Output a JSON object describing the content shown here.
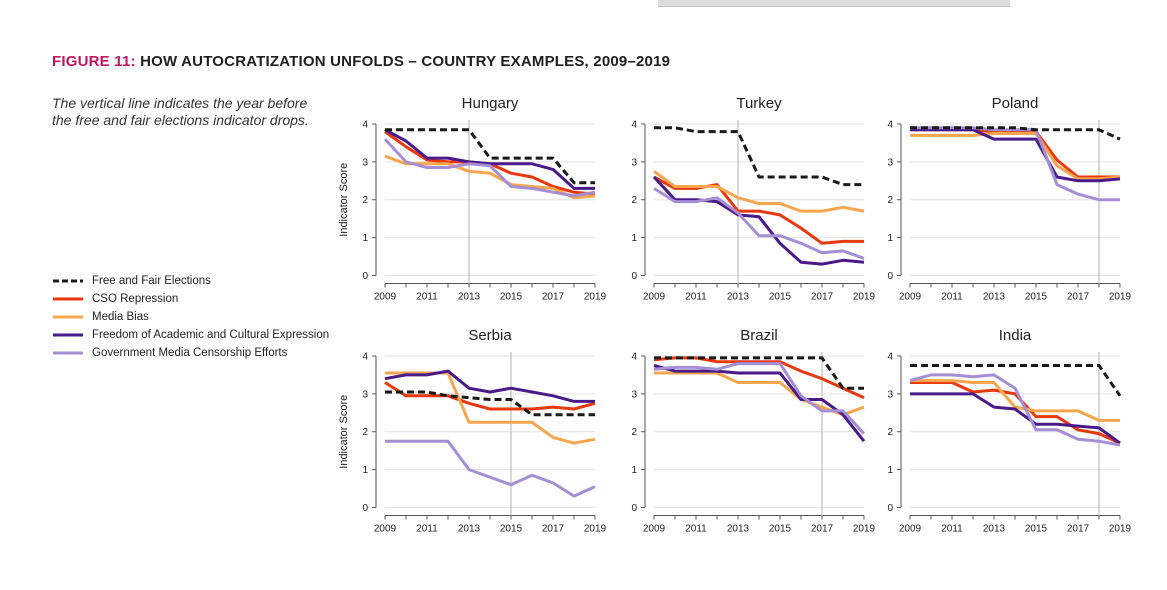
{
  "figure": {
    "number_label": "FIGURE 11:",
    "title": "HOW AUTOCRATIZATION UNFOLDS – COUNTRY EXAMPLES, 2009–2019",
    "note": "The vertical line indicates the year before the free and fair elections indicator drops."
  },
  "legend": [
    {
      "name": "Free and Fair Elections",
      "color": "#1a1a1a",
      "dash": true
    },
    {
      "name": "CSO Repression",
      "color": "#e8380d",
      "dash": false
    },
    {
      "name": "Media Bias",
      "color": "#f7a64e",
      "dash": false
    },
    {
      "name": "Freedom of Academic and Cultural Expression",
      "color": "#4b1a8a",
      "dash": false
    },
    {
      "name": "Government Media Censorship Efforts",
      "color": "#a58fd4",
      "dash": false
    }
  ],
  "chart_data": [
    {
      "type": "line",
      "title": "Hungary",
      "ylabel": "Indicator Score",
      "xlim": [
        2009,
        2019
      ],
      "ylim": [
        0,
        4
      ],
      "xticks": [
        "2009",
        "2011",
        "2013",
        "2015",
        "2017",
        "2019"
      ],
      "yticks": [
        "0",
        "1",
        "2",
        "3",
        "4"
      ],
      "vline": 2013,
      "x": [
        2009,
        2010,
        2011,
        2012,
        2013,
        2014,
        2015,
        2016,
        2017,
        2018,
        2019
      ],
      "series": [
        {
          "name": "Free and Fair Elections",
          "values": [
            3.85,
            3.85,
            3.85,
            3.85,
            3.85,
            3.1,
            3.1,
            3.1,
            3.1,
            2.45,
            2.45
          ]
        },
        {
          "name": "CSO Repression",
          "values": [
            3.8,
            3.4,
            3.05,
            3.0,
            3.0,
            2.95,
            2.7,
            2.6,
            2.35,
            2.2,
            2.15
          ]
        },
        {
          "name": "Media Bias",
          "values": [
            3.15,
            2.95,
            2.95,
            2.95,
            2.75,
            2.7,
            2.4,
            2.35,
            2.3,
            2.05,
            2.1
          ]
        },
        {
          "name": "Freedom of Academic and Cultural Expression",
          "values": [
            3.85,
            3.55,
            3.1,
            3.1,
            3.0,
            2.95,
            2.95,
            2.95,
            2.8,
            2.3,
            2.3
          ]
        },
        {
          "name": "Government Media Censorship Efforts",
          "values": [
            3.6,
            3.0,
            2.85,
            2.85,
            2.95,
            2.9,
            2.35,
            2.3,
            2.2,
            2.1,
            2.2
          ]
        }
      ]
    },
    {
      "type": "line",
      "title": "Turkey",
      "ylabel": "",
      "xlim": [
        2009,
        2019
      ],
      "ylim": [
        0,
        4
      ],
      "xticks": [
        "2009",
        "2011",
        "2013",
        "2015",
        "2017",
        "2019"
      ],
      "yticks": [
        "0",
        "1",
        "2",
        "3",
        "4"
      ],
      "vline": 2013,
      "x": [
        2009,
        2010,
        2011,
        2012,
        2013,
        2014,
        2015,
        2016,
        2017,
        2018,
        2019
      ],
      "series": [
        {
          "name": "Free and Fair Elections",
          "values": [
            3.9,
            3.9,
            3.8,
            3.8,
            3.8,
            2.6,
            2.6,
            2.6,
            2.6,
            2.4,
            2.4
          ]
        },
        {
          "name": "CSO Repression",
          "values": [
            2.6,
            2.3,
            2.3,
            2.4,
            1.7,
            1.7,
            1.6,
            1.25,
            0.85,
            0.9,
            0.9
          ]
        },
        {
          "name": "Media Bias",
          "values": [
            2.75,
            2.35,
            2.35,
            2.35,
            2.05,
            1.9,
            1.9,
            1.7,
            1.7,
            1.8,
            1.7
          ]
        },
        {
          "name": "Freedom of Academic and Cultural Expression",
          "values": [
            2.6,
            2.0,
            2.0,
            1.95,
            1.6,
            1.55,
            0.85,
            0.35,
            0.3,
            0.4,
            0.35
          ]
        },
        {
          "name": "Government Media Censorship Efforts",
          "values": [
            2.3,
            1.95,
            1.95,
            2.05,
            1.65,
            1.05,
            1.05,
            0.85,
            0.6,
            0.65,
            0.45
          ]
        }
      ]
    },
    {
      "type": "line",
      "title": "Poland",
      "ylabel": "",
      "xlim": [
        2009,
        2019
      ],
      "ylim": [
        0,
        4
      ],
      "xticks": [
        "2009",
        "2011",
        "2013",
        "2015",
        "2017",
        "2019"
      ],
      "yticks": [
        "0",
        "1",
        "2",
        "3",
        "4"
      ],
      "vline": 2018,
      "x": [
        2009,
        2010,
        2011,
        2012,
        2013,
        2014,
        2015,
        2016,
        2017,
        2018,
        2019
      ],
      "series": [
        {
          "name": "Free and Fair Elections",
          "values": [
            3.9,
            3.9,
            3.9,
            3.9,
            3.9,
            3.9,
            3.85,
            3.85,
            3.85,
            3.85,
            3.6
          ]
        },
        {
          "name": "CSO Repression",
          "values": [
            3.85,
            3.85,
            3.85,
            3.85,
            3.8,
            3.8,
            3.8,
            3.05,
            2.6,
            2.6,
            2.6
          ]
        },
        {
          "name": "Media Bias",
          "values": [
            3.7,
            3.7,
            3.7,
            3.7,
            3.75,
            3.75,
            3.75,
            2.9,
            2.55,
            2.55,
            2.6
          ]
        },
        {
          "name": "Freedom of Academic and Cultural Expression",
          "values": [
            3.85,
            3.85,
            3.85,
            3.85,
            3.6,
            3.6,
            3.6,
            2.6,
            2.5,
            2.5,
            2.55
          ]
        },
        {
          "name": "Government Media Censorship Efforts",
          "values": [
            3.9,
            3.9,
            3.9,
            3.9,
            3.85,
            3.85,
            3.85,
            2.4,
            2.15,
            2.0,
            2.0
          ]
        }
      ]
    },
    {
      "type": "line",
      "title": "Serbia",
      "ylabel": "Indicator Score",
      "xlim": [
        2009,
        2019
      ],
      "ylim": [
        0,
        4
      ],
      "xticks": [
        "2009",
        "2011",
        "2013",
        "2015",
        "2017",
        "2019"
      ],
      "yticks": [
        "0",
        "1",
        "2",
        "3",
        "4"
      ],
      "vline": 2015,
      "x": [
        2009,
        2010,
        2011,
        2012,
        2013,
        2014,
        2015,
        2016,
        2017,
        2018,
        2019
      ],
      "series": [
        {
          "name": "Free and Fair Elections",
          "values": [
            3.05,
            3.05,
            3.05,
            2.95,
            2.9,
            2.85,
            2.85,
            2.45,
            2.45,
            2.45,
            2.45
          ]
        },
        {
          "name": "CSO Repression",
          "values": [
            3.3,
            2.95,
            2.95,
            2.95,
            2.75,
            2.6,
            2.6,
            2.6,
            2.65,
            2.6,
            2.75
          ]
        },
        {
          "name": "Media Bias",
          "values": [
            3.55,
            3.55,
            3.55,
            3.55,
            2.25,
            2.25,
            2.25,
            2.25,
            1.85,
            1.7,
            1.8
          ]
        },
        {
          "name": "Freedom of Academic and Cultural Expression",
          "values": [
            3.4,
            3.5,
            3.5,
            3.6,
            3.15,
            3.05,
            3.15,
            3.05,
            2.95,
            2.8,
            2.8
          ]
        },
        {
          "name": "Government Media Censorship Efforts",
          "values": [
            1.75,
            1.75,
            1.75,
            1.75,
            1.0,
            0.8,
            0.6,
            0.85,
            0.65,
            0.3,
            0.55
          ]
        }
      ]
    },
    {
      "type": "line",
      "title": "Brazil",
      "ylabel": "",
      "xlim": [
        2009,
        2019
      ],
      "ylim": [
        0,
        4
      ],
      "xticks": [
        "2009",
        "2011",
        "2013",
        "2015",
        "2017",
        "2019"
      ],
      "yticks": [
        "0",
        "1",
        "2",
        "3",
        "4"
      ],
      "vline": 2017,
      "x": [
        2009,
        2010,
        2011,
        2012,
        2013,
        2014,
        2015,
        2016,
        2017,
        2018,
        2019
      ],
      "series": [
        {
          "name": "Free and Fair Elections",
          "values": [
            3.95,
            3.95,
            3.95,
            3.95,
            3.95,
            3.95,
            3.95,
            3.95,
            3.95,
            3.15,
            3.15
          ]
        },
        {
          "name": "CSO Repression",
          "values": [
            3.9,
            3.95,
            3.95,
            3.85,
            3.85,
            3.85,
            3.85,
            3.6,
            3.4,
            3.15,
            2.9
          ]
        },
        {
          "name": "Media Bias",
          "values": [
            3.55,
            3.55,
            3.55,
            3.55,
            3.3,
            3.3,
            3.3,
            2.85,
            2.65,
            2.45,
            2.65
          ]
        },
        {
          "name": "Freedom of Academic and Cultural Expression",
          "values": [
            3.75,
            3.6,
            3.6,
            3.6,
            3.55,
            3.55,
            3.55,
            2.85,
            2.85,
            2.45,
            1.75
          ]
        },
        {
          "name": "Government Media Censorship Efforts",
          "values": [
            3.65,
            3.7,
            3.7,
            3.65,
            3.8,
            3.8,
            3.8,
            2.95,
            2.55,
            2.55,
            1.95
          ]
        }
      ]
    },
    {
      "type": "line",
      "title": "India",
      "ylabel": "",
      "xlim": [
        2009,
        2019
      ],
      "ylim": [
        0,
        4
      ],
      "xticks": [
        "2009",
        "2011",
        "2013",
        "2015",
        "2017",
        "2019"
      ],
      "yticks": [
        "0",
        "1",
        "2",
        "3",
        "4"
      ],
      "vline": 2018,
      "x": [
        2009,
        2010,
        2011,
        2012,
        2013,
        2014,
        2015,
        2016,
        2017,
        2018,
        2019
      ],
      "series": [
        {
          "name": "Free and Fair Elections",
          "values": [
            3.75,
            3.75,
            3.75,
            3.75,
            3.75,
            3.75,
            3.75,
            3.75,
            3.75,
            3.75,
            2.95
          ]
        },
        {
          "name": "CSO Repression",
          "values": [
            3.3,
            3.3,
            3.3,
            3.05,
            3.1,
            3.0,
            2.4,
            2.4,
            2.05,
            1.95,
            1.7
          ]
        },
        {
          "name": "Media Bias",
          "values": [
            3.35,
            3.35,
            3.35,
            3.3,
            3.3,
            2.65,
            2.55,
            2.55,
            2.55,
            2.3,
            2.3
          ]
        },
        {
          "name": "Freedom of Academic and Cultural Expression",
          "values": [
            3.0,
            3.0,
            3.0,
            3.0,
            2.65,
            2.6,
            2.2,
            2.2,
            2.15,
            2.1,
            1.7
          ]
        },
        {
          "name": "Government Media Censorship Efforts",
          "values": [
            3.35,
            3.5,
            3.5,
            3.45,
            3.5,
            3.15,
            2.05,
            2.05,
            1.8,
            1.75,
            1.65
          ]
        }
      ]
    }
  ]
}
